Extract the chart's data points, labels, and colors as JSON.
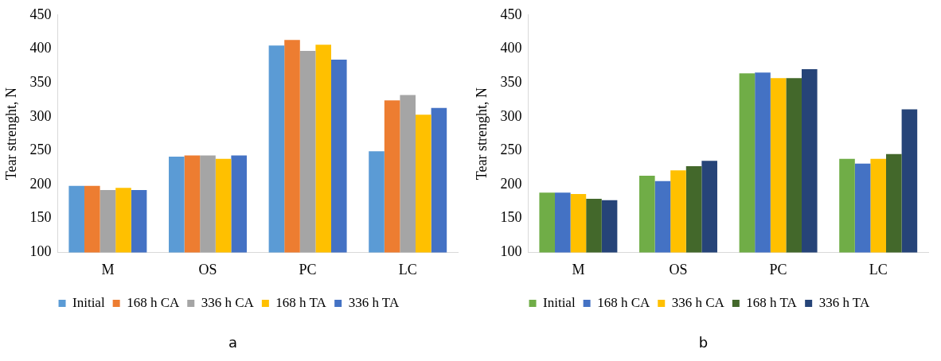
{
  "chart_data": [
    {
      "type": "bar",
      "ylabel": "Tear strenght, N",
      "categories": [
        "M",
        "OS",
        "PC",
        "LC"
      ],
      "ylim": [
        100,
        450
      ],
      "yticks": [
        100,
        150,
        200,
        250,
        300,
        350,
        400,
        450
      ],
      "grid": false,
      "legend": "bottom",
      "annotations": [
        "a"
      ],
      "series": [
        {
          "name": "Initial",
          "color": "#5b9bd5",
          "values": [
            198,
            241,
            405,
            249
          ]
        },
        {
          "name": "168 h CA",
          "color": "#ed7d31",
          "values": [
            198,
            243,
            413,
            324
          ]
        },
        {
          "name": "336 h CA",
          "color": "#a5a5a5",
          "values": [
            192,
            243,
            397,
            332
          ]
        },
        {
          "name": "168 h TA",
          "color": "#ffc000",
          "values": [
            195,
            238,
            406,
            303
          ]
        },
        {
          "name": "336 h TA",
          "color": "#4472c4",
          "values": [
            192,
            243,
            384,
            313
          ]
        }
      ]
    },
    {
      "type": "bar",
      "ylabel": "Tear strenght, N",
      "categories": [
        "M",
        "OS",
        "PC",
        "LC"
      ],
      "ylim": [
        100,
        450
      ],
      "yticks": [
        100,
        150,
        200,
        250,
        300,
        350,
        400,
        450
      ],
      "grid": false,
      "legend": "bottom",
      "annotations": [
        "b"
      ],
      "series": [
        {
          "name": "Initial",
          "color": "#70ad47",
          "values": [
            188,
            213,
            364,
            238
          ]
        },
        {
          "name": "168 h CA",
          "color": "#4472c4",
          "values": [
            188,
            205,
            365,
            231
          ]
        },
        {
          "name": "336 h CA",
          "color": "#ffc000",
          "values": [
            186,
            221,
            357,
            238
          ]
        },
        {
          "name": "168 h TA",
          "color": "#43682b",
          "values": [
            179,
            227,
            357,
            245
          ]
        },
        {
          "name": "336 h TA",
          "color": "#264478",
          "values": [
            177,
            235,
            370,
            311
          ]
        }
      ]
    }
  ]
}
